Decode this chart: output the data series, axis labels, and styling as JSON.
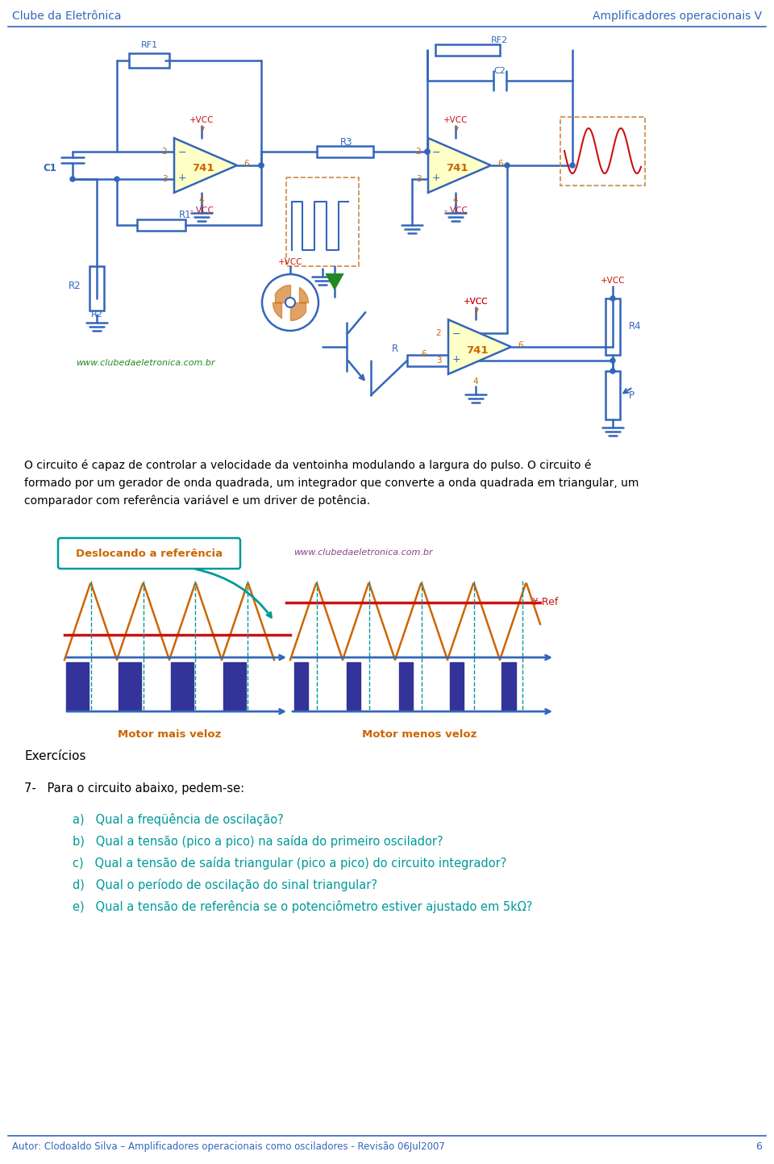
{
  "header_left": "Clube da Eletrônica",
  "header_right": "Amplificadores operacionais V",
  "footer_text": "Autor: Clodoaldo Silva – Amplificadores operacionais como osciladores - Revisão 06Jul2007",
  "footer_page": "6",
  "body_lines": [
    "O circuito é capaz de controlar a velocidade da ventoinha modulando a largura do pulso. O circuito é",
    "formado por um gerador de onda quadrada, um integrador que converte a onda quadrada em triangular, um",
    "comparador com referência variável e um driver de potência."
  ],
  "exercises_title": "Exercícios",
  "exercise_number": "7-   Para o circuito abaixo, pedem-se:",
  "questions": [
    "a)   Qual a freqüência de oscilação?",
    "b)   Qual a tensão (pico a pico) na saída do primeiro oscilador?",
    "c)   Qual a tensão de saída triangular (pico a pico) do circuito integrador?",
    "d)   Qual o período de oscilação do sinal triangular?",
    "e)   Qual a tensão de referência se o potenciômetro estiver ajustado em 5kΩ?"
  ],
  "blue": "#3366bb",
  "dark_blue": "#1a3a8a",
  "orange": "#cc6600",
  "red": "#cc1111",
  "green": "#228822",
  "teal": "#009999",
  "yellow_bg": "#ffffc8",
  "pwm_blue": "#333399"
}
